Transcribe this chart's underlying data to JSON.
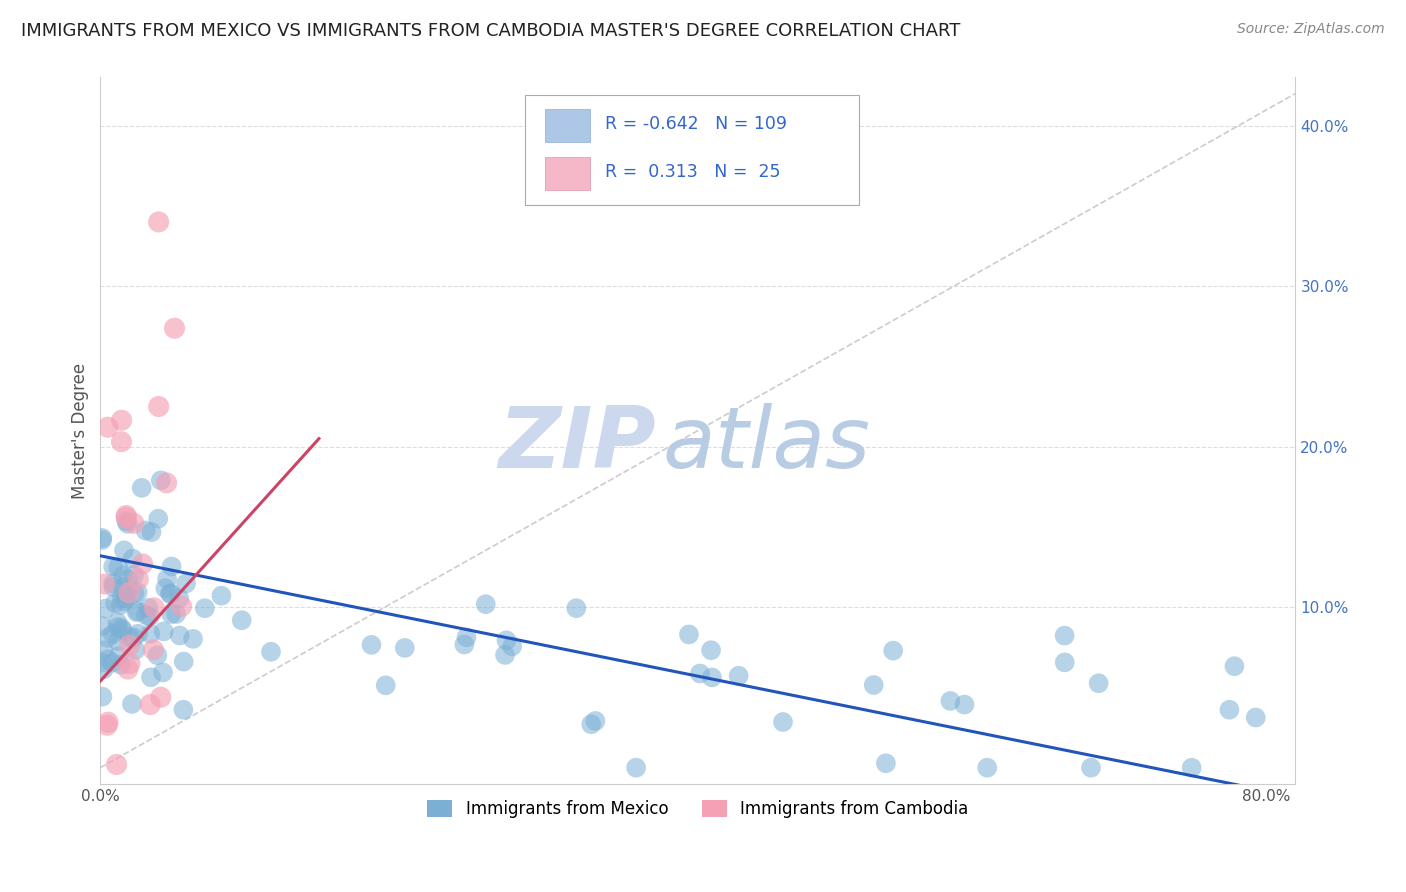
{
  "title": "IMMIGRANTS FROM MEXICO VS IMMIGRANTS FROM CAMBODIA MASTER'S DEGREE CORRELATION CHART",
  "source": "Source: ZipAtlas.com",
  "ylabel": "Master's Degree",
  "xlim": [
    0.0,
    0.82
  ],
  "ylim": [
    -0.01,
    0.43
  ],
  "x_ticks": [
    0.0,
    0.1,
    0.2,
    0.3,
    0.4,
    0.5,
    0.6,
    0.7,
    0.8
  ],
  "x_tick_labels": [
    "0.0%",
    "",
    "",
    "",
    "",
    "",
    "",
    "",
    "80.0%"
  ],
  "y_ticks": [
    0.0,
    0.1,
    0.2,
    0.3,
    0.4
  ],
  "y_tick_labels": [
    "",
    "10.0%",
    "20.0%",
    "30.0%",
    "40.0%"
  ],
  "legend_R1": "R = -0.642",
  "legend_N1": "N = 109",
  "legend_R2": "R =  0.313",
  "legend_N2": "N =  25",
  "legend_bottom": [
    "Immigrants from Mexico",
    "Immigrants from Cambodia"
  ],
  "mexico_color": "#7bafd4",
  "cambodia_color": "#f4a0b5",
  "mexico_line_color": "#2255bb",
  "cambodia_line_color": "#cc4466",
  "ref_line_color": "#cccccc",
  "watermark_zip": "ZIP",
  "watermark_atlas": "atlas",
  "watermark_color": "#ccd8ee",
  "background_color": "#ffffff",
  "grid_color": "#dddddd",
  "tick_color": "#4472c4",
  "title_color": "#222222",
  "source_color": "#888888"
}
